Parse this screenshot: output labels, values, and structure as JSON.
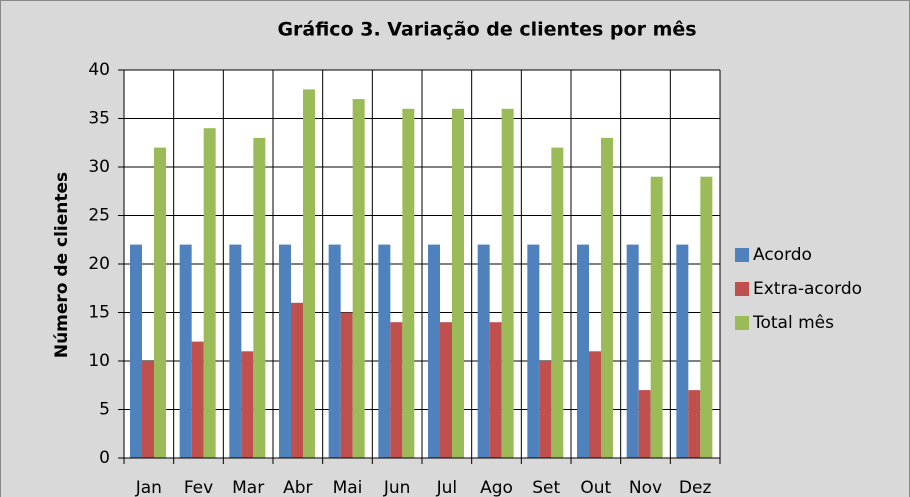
{
  "chart_data": {
    "type": "bar",
    "title": "Gráfico 3. Variação de clientes por mês",
    "y_label": "Número de clientes",
    "categories": [
      "Jan",
      "Fev",
      "Mar",
      "Abr",
      "Mai",
      "Jun",
      "Jul",
      "Ago",
      "Set",
      "Out",
      "Nov",
      "Dez"
    ],
    "series": [
      {
        "name": "Acordo",
        "color": "#4f81bd",
        "values": [
          22,
          22,
          22,
          22,
          22,
          22,
          22,
          22,
          22,
          22,
          22,
          22
        ]
      },
      {
        "name": "Extra-acordo",
        "color": "#c0504d",
        "values": [
          10,
          12,
          11,
          16,
          15,
          14,
          14,
          14,
          10,
          11,
          7,
          7
        ]
      },
      {
        "name": "Total mês",
        "color": "#9bbb59",
        "values": [
          32,
          34,
          33,
          38,
          37,
          36,
          36,
          36,
          32,
          33,
          29,
          29
        ]
      }
    ],
    "ylim": [
      0,
      40
    ],
    "yticks": [
      0,
      5,
      10,
      15,
      20,
      25,
      30,
      35,
      40
    ],
    "grid": true,
    "legend": "right"
  }
}
